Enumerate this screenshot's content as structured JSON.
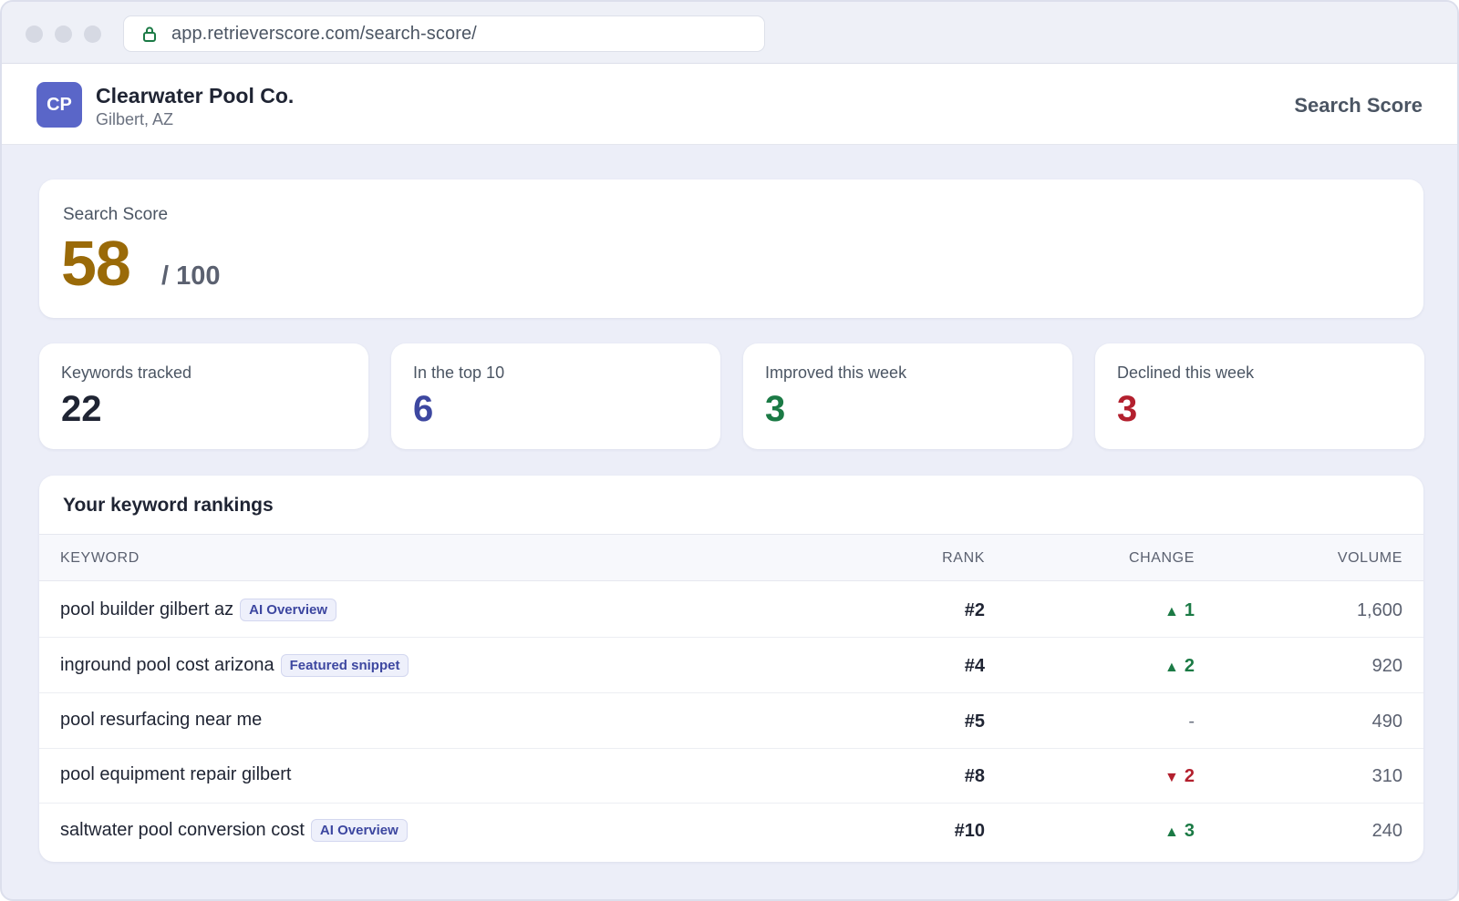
{
  "browser": {
    "url": "app.retrieverscore.com/search-score/"
  },
  "header": {
    "avatar_initials": "CP",
    "business_name": "Clearwater Pool Co.",
    "business_location": "Gilbert, AZ",
    "page_label": "Search Score"
  },
  "score": {
    "label": "Search Score",
    "value": "58",
    "max": "/ 100",
    "color": "#9a6a08"
  },
  "stats": [
    {
      "label": "Keywords tracked",
      "value": "22",
      "color": "#1f2433"
    },
    {
      "label": "In the top 10",
      "value": "6",
      "color": "#3d47a0"
    },
    {
      "label": "Improved this week",
      "value": "3",
      "color": "#1b7a45"
    },
    {
      "label": "Declined this week",
      "value": "3",
      "color": "#b3202e"
    }
  ],
  "rankings": {
    "title": "Your keyword rankings",
    "columns": [
      "KEYWORD",
      "RANK",
      "CHANGE",
      "VOLUME"
    ],
    "rows": [
      {
        "keyword": "pool builder gilbert az",
        "badge": "AI Overview",
        "rank": "#2",
        "change_dir": "up",
        "change_arrow": "▲",
        "change": "1",
        "volume": "1,600"
      },
      {
        "keyword": "inground pool cost arizona",
        "badge": "Featured snippet",
        "rank": "#4",
        "change_dir": "up",
        "change_arrow": "▲",
        "change": "2",
        "volume": "920"
      },
      {
        "keyword": "pool resurfacing near me",
        "badge": "",
        "rank": "#5",
        "change_dir": "flat",
        "change_arrow": "",
        "change": "-",
        "volume": "490"
      },
      {
        "keyword": "pool equipment repair gilbert",
        "badge": "",
        "rank": "#8",
        "change_dir": "down",
        "change_arrow": "▼",
        "change": "2",
        "volume": "310"
      },
      {
        "keyword": "saltwater pool conversion cost",
        "badge": "AI Overview",
        "rank": "#10",
        "change_dir": "up",
        "change_arrow": "▲",
        "change": "3",
        "volume": "240"
      }
    ]
  }
}
